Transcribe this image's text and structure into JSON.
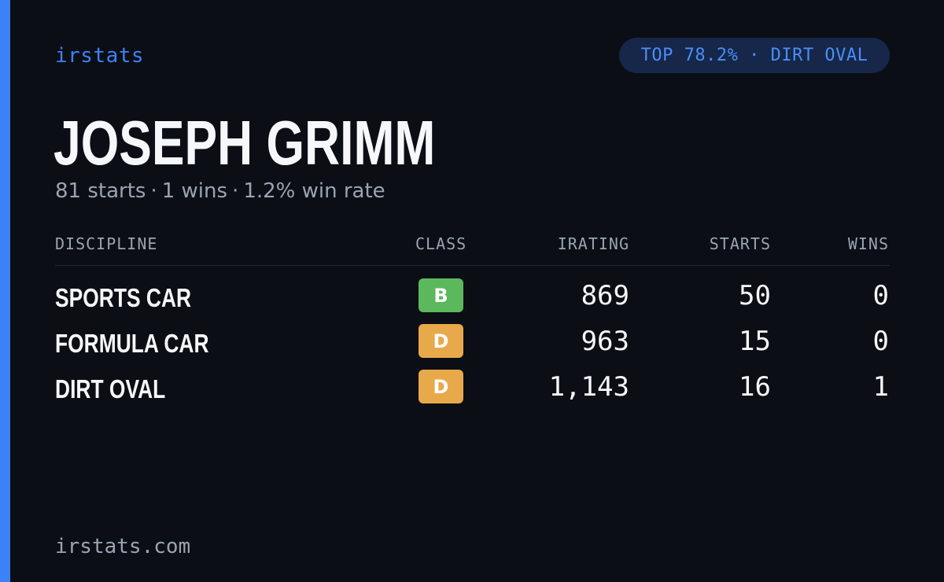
{
  "brand": "irstats",
  "badge": "TOP 78.2% · DIRT OVAL",
  "driver": {
    "name": "JOSEPH GRIMM",
    "starts_text": "81 starts",
    "wins_text": "1 wins",
    "win_rate_text": "1.2% win rate",
    "separator": "·"
  },
  "table": {
    "headers": {
      "discipline": "DISCIPLINE",
      "class": "CLASS",
      "irating": "IRATING",
      "starts": "STARTS",
      "wins": "WINS"
    },
    "rows": [
      {
        "discipline": "SPORTS CAR",
        "class": "B",
        "class_color": "#5cb85c",
        "irating": "869",
        "starts": "50",
        "wins": "0"
      },
      {
        "discipline": "FORMULA CAR",
        "class": "D",
        "class_color": "#e8a94b",
        "irating": "963",
        "starts": "15",
        "wins": "0"
      },
      {
        "discipline": "DIRT OVAL",
        "class": "D",
        "class_color": "#e8a94b",
        "irating": "1,143",
        "starts": "16",
        "wins": "1"
      }
    ]
  },
  "footer": {
    "url": "irstats.com"
  },
  "colors": {
    "accent": "#3b82f6",
    "background": "#0b0e14",
    "badge_background": "#16274a",
    "muted_text": "#9aa4b2"
  }
}
